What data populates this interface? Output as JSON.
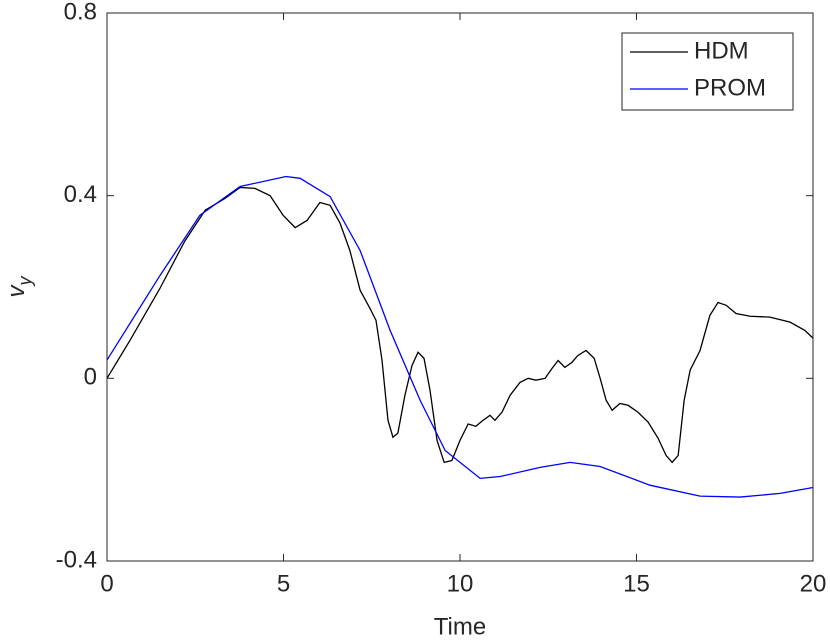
{
  "chart_data": {
    "type": "line",
    "xlabel": "Time",
    "ylabel": [
      "v",
      "y"
    ],
    "xlim": [
      0,
      20
    ],
    "xticks": [
      0,
      5,
      10,
      15,
      20
    ],
    "ylim": [
      -0.4,
      0.8
    ],
    "yticks": [
      -0.4,
      0,
      0.4,
      0.8
    ],
    "grid": false,
    "legend": "top-right",
    "series": [
      {
        "name": "HDM",
        "color": "#000000",
        "x": [
          0,
          0.65,
          1.5,
          2.2,
          2.78,
          3.34,
          3.77,
          4.19,
          4.62,
          4.99,
          5.33,
          5.67,
          6.03,
          6.32,
          6.6,
          6.88,
          7.17,
          7.45,
          7.62,
          7.79,
          7.96,
          8.1,
          8.24,
          8.44,
          8.64,
          8.81,
          8.98,
          9.15,
          9.35,
          9.55,
          9.77,
          10.0,
          10.23,
          10.45,
          10.65,
          10.85,
          10.99,
          11.19,
          11.42,
          11.7,
          11.93,
          12.15,
          12.41,
          12.61,
          12.78,
          12.97,
          13.17,
          13.34,
          13.57,
          13.8,
          13.97,
          14.14,
          14.31,
          14.53,
          14.76,
          15.04,
          15.33,
          15.61,
          15.84,
          16.01,
          16.18,
          16.35,
          16.52,
          16.8,
          17.08,
          17.31,
          17.54,
          17.82,
          18.22,
          18.78,
          19.35,
          19.77,
          20
        ],
        "values": [
          0,
          0.083,
          0.197,
          0.3,
          0.368,
          0.394,
          0.418,
          0.416,
          0.4,
          0.357,
          0.33,
          0.346,
          0.385,
          0.379,
          0.34,
          0.28,
          0.193,
          0.153,
          0.127,
          0.04,
          -0.092,
          -0.129,
          -0.12,
          -0.037,
          0.028,
          0.057,
          0.044,
          -0.026,
          -0.136,
          -0.184,
          -0.18,
          -0.136,
          -0.1,
          -0.105,
          -0.092,
          -0.081,
          -0.092,
          -0.074,
          -0.037,
          -0.009,
          0,
          -0.004,
          0,
          0.022,
          0.039,
          0.024,
          0.035,
          0.05,
          0.061,
          0.044,
          0,
          -0.048,
          -0.07,
          -0.055,
          -0.059,
          -0.074,
          -0.096,
          -0.131,
          -0.169,
          -0.184,
          -0.169,
          -0.048,
          0.018,
          0.061,
          0.138,
          0.166,
          0.16,
          0.142,
          0.136,
          0.134,
          0.123,
          0.105,
          0.088
        ]
      },
      {
        "name": "PROM",
        "color": "#0000ff",
        "x": [
          0,
          1.5,
          2.63,
          3.77,
          5.07,
          5.47,
          6.32,
          7.17,
          8.02,
          8.87,
          9.58,
          10.57,
          11.14,
          12.27,
          13.12,
          13.97,
          15.38,
          16.8,
          17.93,
          19.07,
          20
        ],
        "values": [
          0.04,
          0.225,
          0.357,
          0.42,
          0.442,
          0.438,
          0.398,
          0.28,
          0.105,
          -0.048,
          -0.158,
          -0.219,
          -0.215,
          -0.195,
          -0.184,
          -0.193,
          -0.234,
          -0.258,
          -0.26,
          -0.252,
          -0.239
        ]
      }
    ]
  }
}
